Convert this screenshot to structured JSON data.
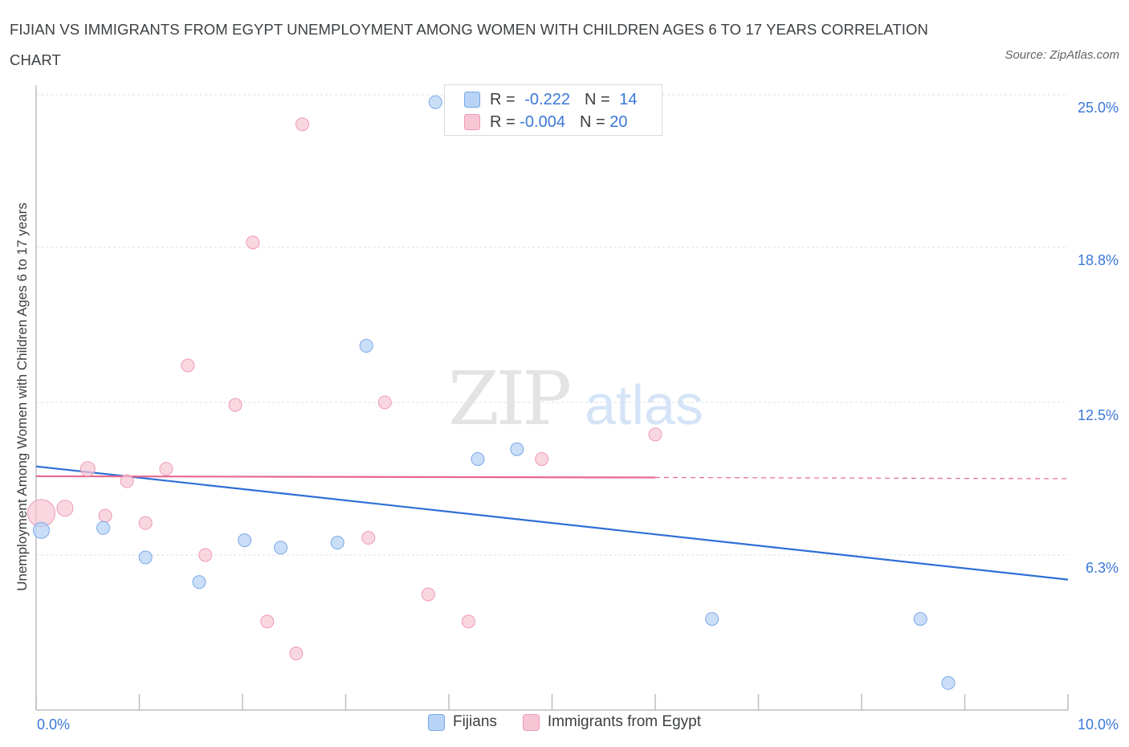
{
  "header": {
    "title": "FIJIAN VS IMMIGRANTS FROM EGYPT UNEMPLOYMENT AMONG WOMEN WITH CHILDREN AGES 6 TO 17 YEARS CORRELATION CHART",
    "source": "Source: ZipAtlas.com"
  },
  "watermark": {
    "zip": "ZIP",
    "atlas": "atlas"
  },
  "legend_top": {
    "fijians": {
      "r_label": "R = ",
      "r_value": "-0.222",
      "n_label": "N = ",
      "n_value": "14"
    },
    "egypt": {
      "r_label": "R = ",
      "r_value": "-0.004",
      "n_label": "N = ",
      "n_value": "20"
    }
  },
  "colors": {
    "fijians_fill": "#b8d3f5",
    "fijians_stroke": "#7aa8e8",
    "fijians_line": "#2f6fd6",
    "egypt_fill": "#f7c6d4",
    "egypt_stroke": "#ee9ab3",
    "egypt_line": "#e8678f",
    "tick_label": "#3b78d8",
    "grid": "#dcdcdc"
  },
  "chart_data": {
    "type": "scatter",
    "title": "FIJIAN VS IMMIGRANTS FROM EGYPT UNEMPLOYMENT AMONG WOMEN WITH CHILDREN AGES 6 TO 17 YEARS CORRELATION CHART",
    "xlabel": "",
    "ylabel": "Unemployment Among Women with Children Ages 6 to 17 years",
    "xlim": [
      0,
      10
    ],
    "ylim": [
      0,
      25
    ],
    "x_tick_labels": [
      "0.0%",
      "10.0%"
    ],
    "y_ticks": [
      6.3,
      12.5,
      18.8,
      25.0
    ],
    "y_tick_labels": [
      "6.3%",
      "12.5%",
      "18.8%",
      "25.0%"
    ],
    "grid": true,
    "legend_position": "bottom",
    "series": [
      {
        "name": "Fijians",
        "points": [
          {
            "x": 0.05,
            "y": 7.3,
            "size": 10
          },
          {
            "x": 0.65,
            "y": 7.4,
            "size": 8
          },
          {
            "x": 1.06,
            "y": 6.2,
            "size": 8
          },
          {
            "x": 1.58,
            "y": 5.2,
            "size": 8
          },
          {
            "x": 2.02,
            "y": 6.9,
            "size": 8
          },
          {
            "x": 2.37,
            "y": 6.6,
            "size": 8
          },
          {
            "x": 2.92,
            "y": 6.8,
            "size": 8
          },
          {
            "x": 3.2,
            "y": 14.8,
            "size": 8
          },
          {
            "x": 3.87,
            "y": 24.7,
            "size": 8
          },
          {
            "x": 4.28,
            "y": 10.2,
            "size": 8
          },
          {
            "x": 4.66,
            "y": 10.6,
            "size": 8
          },
          {
            "x": 6.55,
            "y": 3.7,
            "size": 8
          },
          {
            "x": 8.57,
            "y": 3.7,
            "size": 8
          },
          {
            "x": 8.84,
            "y": 1.1,
            "size": 8
          }
        ],
        "trend": {
          "x": [
            0,
            10
          ],
          "y": [
            9.9,
            5.3
          ]
        }
      },
      {
        "name": "Immigrants from Egypt",
        "points": [
          {
            "x": 0.05,
            "y": 8.0,
            "size": 17
          },
          {
            "x": 0.28,
            "y": 8.2,
            "size": 10
          },
          {
            "x": 0.5,
            "y": 9.8,
            "size": 9
          },
          {
            "x": 0.67,
            "y": 7.9,
            "size": 8
          },
          {
            "x": 0.88,
            "y": 9.3,
            "size": 8
          },
          {
            "x": 1.06,
            "y": 7.6,
            "size": 8
          },
          {
            "x": 1.26,
            "y": 9.8,
            "size": 8
          },
          {
            "x": 1.47,
            "y": 14.0,
            "size": 8
          },
          {
            "x": 1.64,
            "y": 6.3,
            "size": 8
          },
          {
            "x": 1.93,
            "y": 12.4,
            "size": 8
          },
          {
            "x": 2.1,
            "y": 19.0,
            "size": 8
          },
          {
            "x": 2.24,
            "y": 3.6,
            "size": 8
          },
          {
            "x": 2.52,
            "y": 2.3,
            "size": 8
          },
          {
            "x": 2.58,
            "y": 23.8,
            "size": 8
          },
          {
            "x": 3.22,
            "y": 7.0,
            "size": 8
          },
          {
            "x": 3.38,
            "y": 12.5,
            "size": 8
          },
          {
            "x": 3.8,
            "y": 4.7,
            "size": 8
          },
          {
            "x": 4.19,
            "y": 3.6,
            "size": 8
          },
          {
            "x": 4.9,
            "y": 10.2,
            "size": 8
          },
          {
            "x": 6.0,
            "y": 11.2,
            "size": 8
          }
        ],
        "trend": {
          "x": [
            0,
            6.0
          ],
          "y": [
            9.5,
            9.45
          ],
          "dashed_to": [
            10,
            9.4
          ]
        }
      }
    ]
  }
}
